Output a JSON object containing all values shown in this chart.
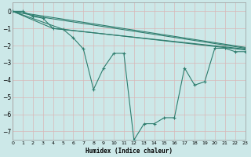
{
  "xlabel": "Humidex (Indice chaleur)",
  "background_color": "#cce8e8",
  "grid_color": "#b8d8d0",
  "line_color": "#2e7d6e",
  "xlim": [
    0,
    23
  ],
  "ylim": [
    -7.5,
    0.5
  ],
  "yticks": [
    0,
    -1,
    -2,
    -3,
    -4,
    -5,
    -6,
    -7
  ],
  "xticks": [
    0,
    1,
    2,
    3,
    4,
    5,
    6,
    7,
    8,
    9,
    10,
    11,
    12,
    13,
    14,
    15,
    16,
    17,
    18,
    19,
    20,
    21,
    22,
    23
  ],
  "lines": [
    {
      "points": [
        [
          0,
          0
        ],
        [
          1,
          0
        ],
        [
          2,
          -0.3
        ],
        [
          3,
          -0.4
        ],
        [
          4,
          -1.0
        ],
        [
          5,
          -1.05
        ],
        [
          6,
          -1.55
        ],
        [
          7,
          -2.2
        ],
        [
          8,
          -4.55
        ],
        [
          9,
          -3.3
        ],
        [
          10,
          -2.45
        ],
        [
          11,
          -2.45
        ],
        [
          12,
          -7.5
        ],
        [
          13,
          -6.55
        ],
        [
          14,
          -6.55
        ],
        [
          15,
          -6.2
        ],
        [
          16,
          -6.2
        ],
        [
          17,
          -3.3
        ],
        [
          18,
          -4.3
        ],
        [
          19,
          -4.1
        ],
        [
          20,
          -2.15
        ],
        [
          21,
          -2.15
        ],
        [
          22,
          -2.35
        ],
        [
          23,
          -2.35
        ]
      ],
      "marker": true
    },
    {
      "points": [
        [
          0,
          0
        ],
        [
          23,
          -2.1
        ]
      ],
      "marker": false
    },
    {
      "points": [
        [
          0,
          0
        ],
        [
          3,
          -0.35
        ],
        [
          23,
          -2.15
        ]
      ],
      "marker": false
    },
    {
      "points": [
        [
          0,
          0
        ],
        [
          4,
          -1.0
        ],
        [
          23,
          -2.2
        ]
      ],
      "marker": false
    },
    {
      "points": [
        [
          0,
          0
        ],
        [
          5,
          -1.05
        ],
        [
          23,
          -2.25
        ]
      ],
      "marker": false
    }
  ]
}
